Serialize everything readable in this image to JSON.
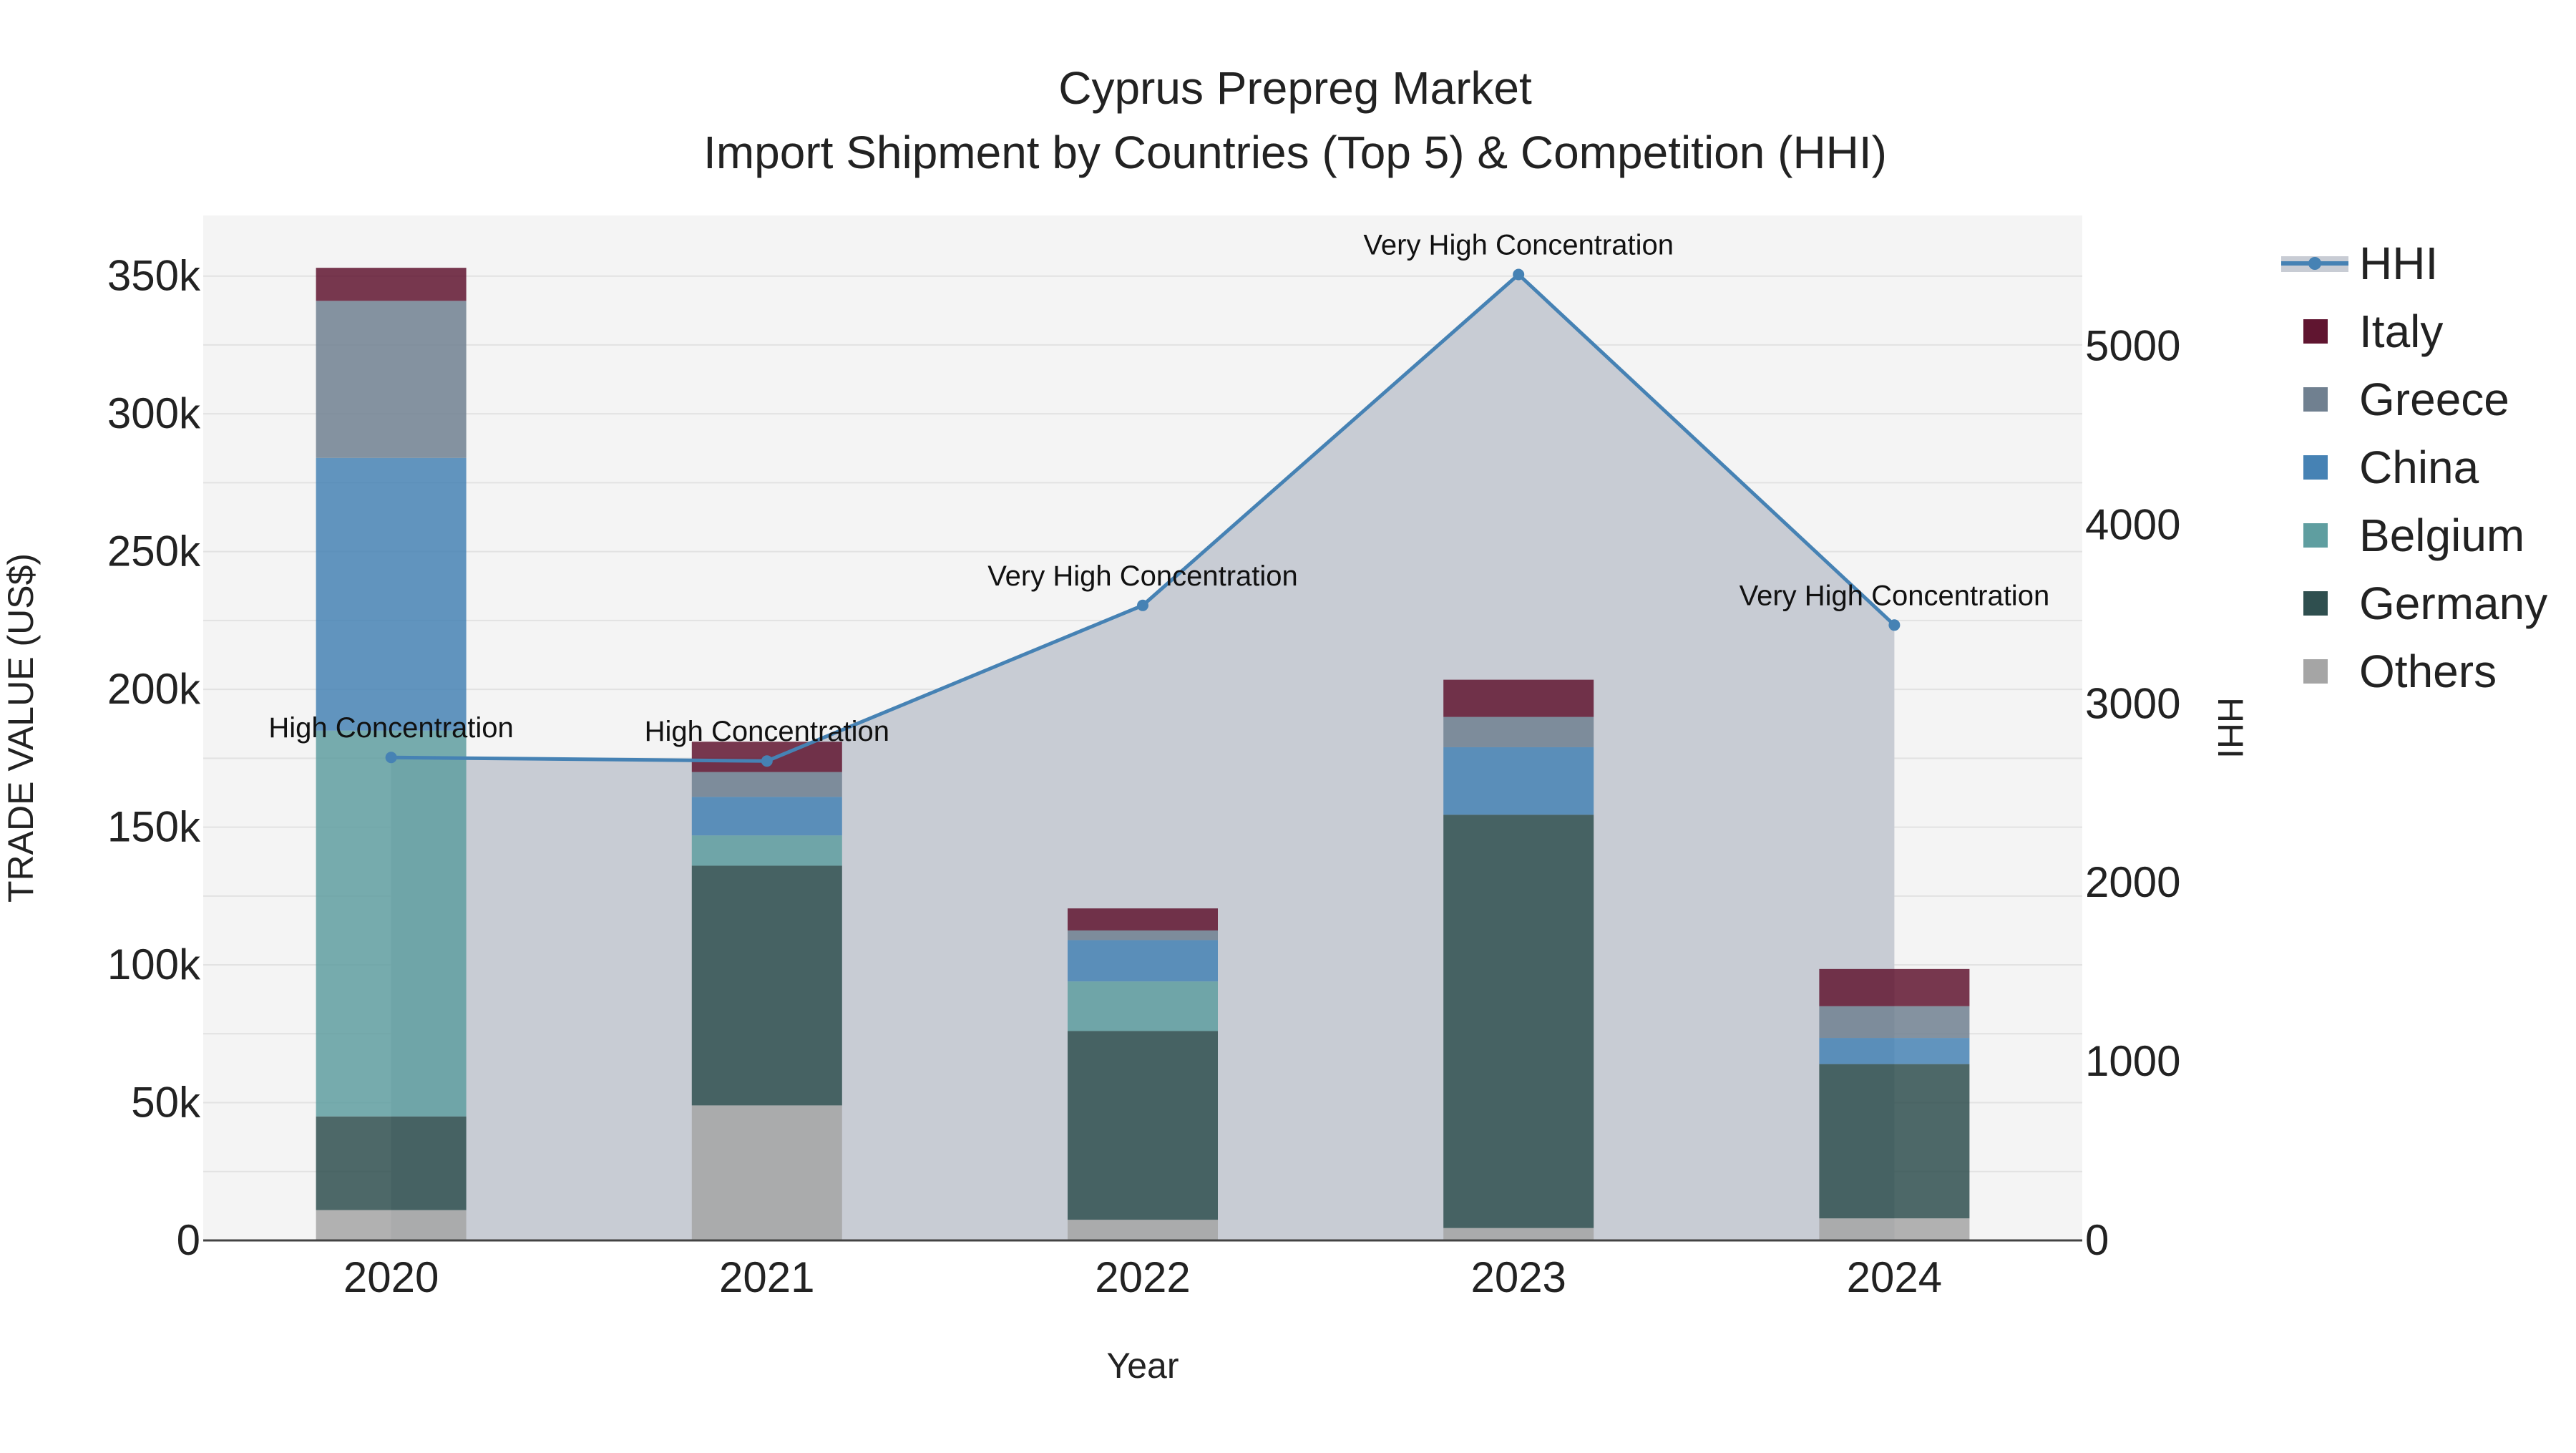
{
  "chart_data": {
    "type": "bar",
    "title_line1": "Cyprus Prepreg Market",
    "title_line2": "Import Shipment by Countries (Top 5) & Competition (HHI)",
    "xlabel": "Year",
    "ylabel": "TRADE VALUE (US$)",
    "y2label": "HHI",
    "categories": [
      "2020",
      "2021",
      "2022",
      "2023",
      "2024"
    ],
    "ylim": [
      0,
      372000
    ],
    "y2lim": [
      0,
      5730
    ],
    "yticks": [
      0,
      50000,
      100000,
      150000,
      200000,
      250000,
      300000,
      350000
    ],
    "ytick_labels": [
      "0",
      "50k",
      "100k",
      "150k",
      "200k",
      "250k",
      "300k",
      "350k"
    ],
    "y2ticks": [
      0,
      1000,
      2000,
      3000,
      4000,
      5000
    ],
    "y2tick_labels": [
      "0",
      "1000",
      "2000",
      "3000",
      "4000",
      "5000"
    ],
    "series": [
      {
        "name": "Others",
        "color": "#a5a5a5",
        "values": [
          11000,
          49000,
          7500,
          4500,
          8000
        ]
      },
      {
        "name": "Germany",
        "color": "#2f4f4f",
        "values": [
          34000,
          87000,
          68500,
          150000,
          56000
        ]
      },
      {
        "name": "Belgium",
        "color": "#5f9ea0",
        "values": [
          140000,
          11000,
          18000,
          0,
          0
        ]
      },
      {
        "name": "China",
        "color": "#4682b4",
        "values": [
          99000,
          14000,
          15000,
          24500,
          9500
        ]
      },
      {
        "name": "Greece",
        "color": "#708090",
        "values": [
          57000,
          9000,
          3500,
          11000,
          11500
        ]
      },
      {
        "name": "Italy",
        "color": "#601530",
        "values": [
          12000,
          11000,
          8000,
          13500,
          13500
        ]
      }
    ],
    "hhi": {
      "name": "HHI",
      "color": "#4682b4",
      "values": [
        2700,
        2680,
        3550,
        5400,
        3440
      ],
      "annotations": [
        "High Concentration",
        "High Concentration",
        "Very High Concentration",
        "Very High Concentration",
        "Very High Concentration"
      ]
    },
    "legend": [
      "HHI",
      "Italy",
      "Greece",
      "China",
      "Belgium",
      "Germany",
      "Others"
    ],
    "legend_position": "right"
  }
}
